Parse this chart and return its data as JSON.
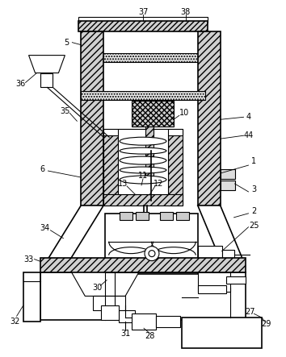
{
  "background_color": "#ffffff",
  "line_color": "#000000",
  "label_fontsize": 7.0,
  "hatch_density": "////",
  "fig_w": 3.54,
  "fig_h": 4.43,
  "dpi": 100
}
